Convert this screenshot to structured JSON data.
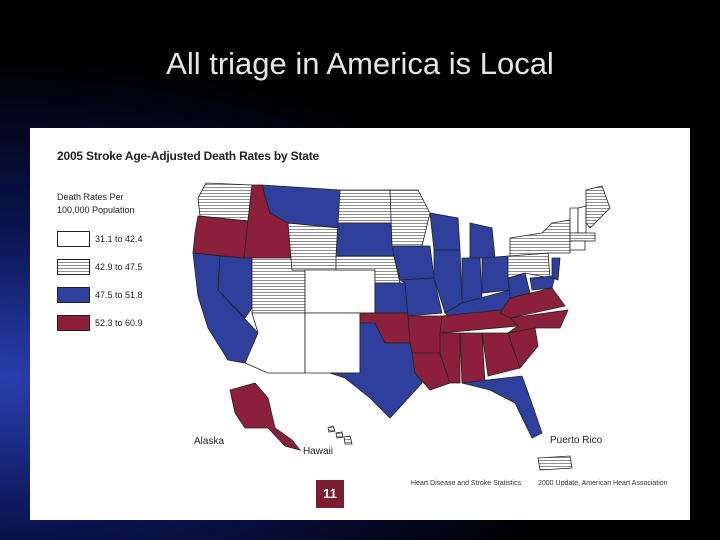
{
  "slide": {
    "title": "All triage in America is Local"
  },
  "map": {
    "title": "2005 Stroke Age-Adjusted Death Rates by State",
    "legend": {
      "heading_line1": "Death Rates Per",
      "heading_line2": "100,000 Population",
      "items": [
        {
          "label": "31.1 to 42.4",
          "fill": "white"
        },
        {
          "label": "42.9 to 47.5",
          "fill": "striped"
        },
        {
          "label": "47.5 to 51.8",
          "fill": "blue"
        },
        {
          "label": "52.3 to 60.9",
          "fill": "maroon"
        }
      ]
    },
    "labels": {
      "alaska": "Alaska",
      "hawaii": "Hawaii",
      "puerto_rico": "Puerto Rico"
    },
    "page_number": "11",
    "source_left": "Heart Disease and Stroke Statistics",
    "source_right": "2000 Update, American Heart Association",
    "colors": {
      "blue": "#2e3f9c",
      "maroon": "#8c1f3a",
      "white": "#ffffff",
      "stripe_line": "#8f8f8f"
    }
  }
}
